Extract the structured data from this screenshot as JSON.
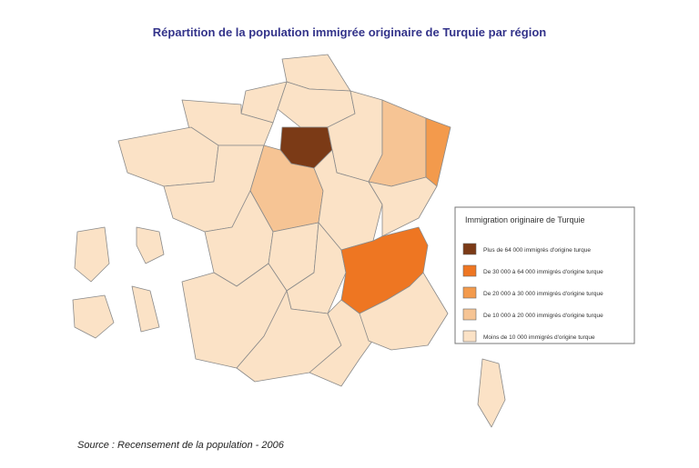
{
  "title": "Répartition de la population immigrée originaire de Turquie par région",
  "legend": {
    "title": "Immigration originaire de Turquie",
    "items": [
      {
        "label": "Plus de 64 000 immigrés d'origine turque",
        "color": "#7b3a16"
      },
      {
        "label": "De 30 000 à 64 000 immigrés d'origine turque",
        "color": "#ee7622"
      },
      {
        "label": "De 20 000 à 30 000 immigrés d'origine turque",
        "color": "#f39a4c"
      },
      {
        "label": "De 10 000 à 20 000 immigrés d'origine turque",
        "color": "#f6c494"
      },
      {
        "label": "Moins de 10 000 immigrés d'origine turque",
        "color": "#fbe2c6"
      }
    ]
  },
  "source": "Source : Recensement de la population - 2006"
}
